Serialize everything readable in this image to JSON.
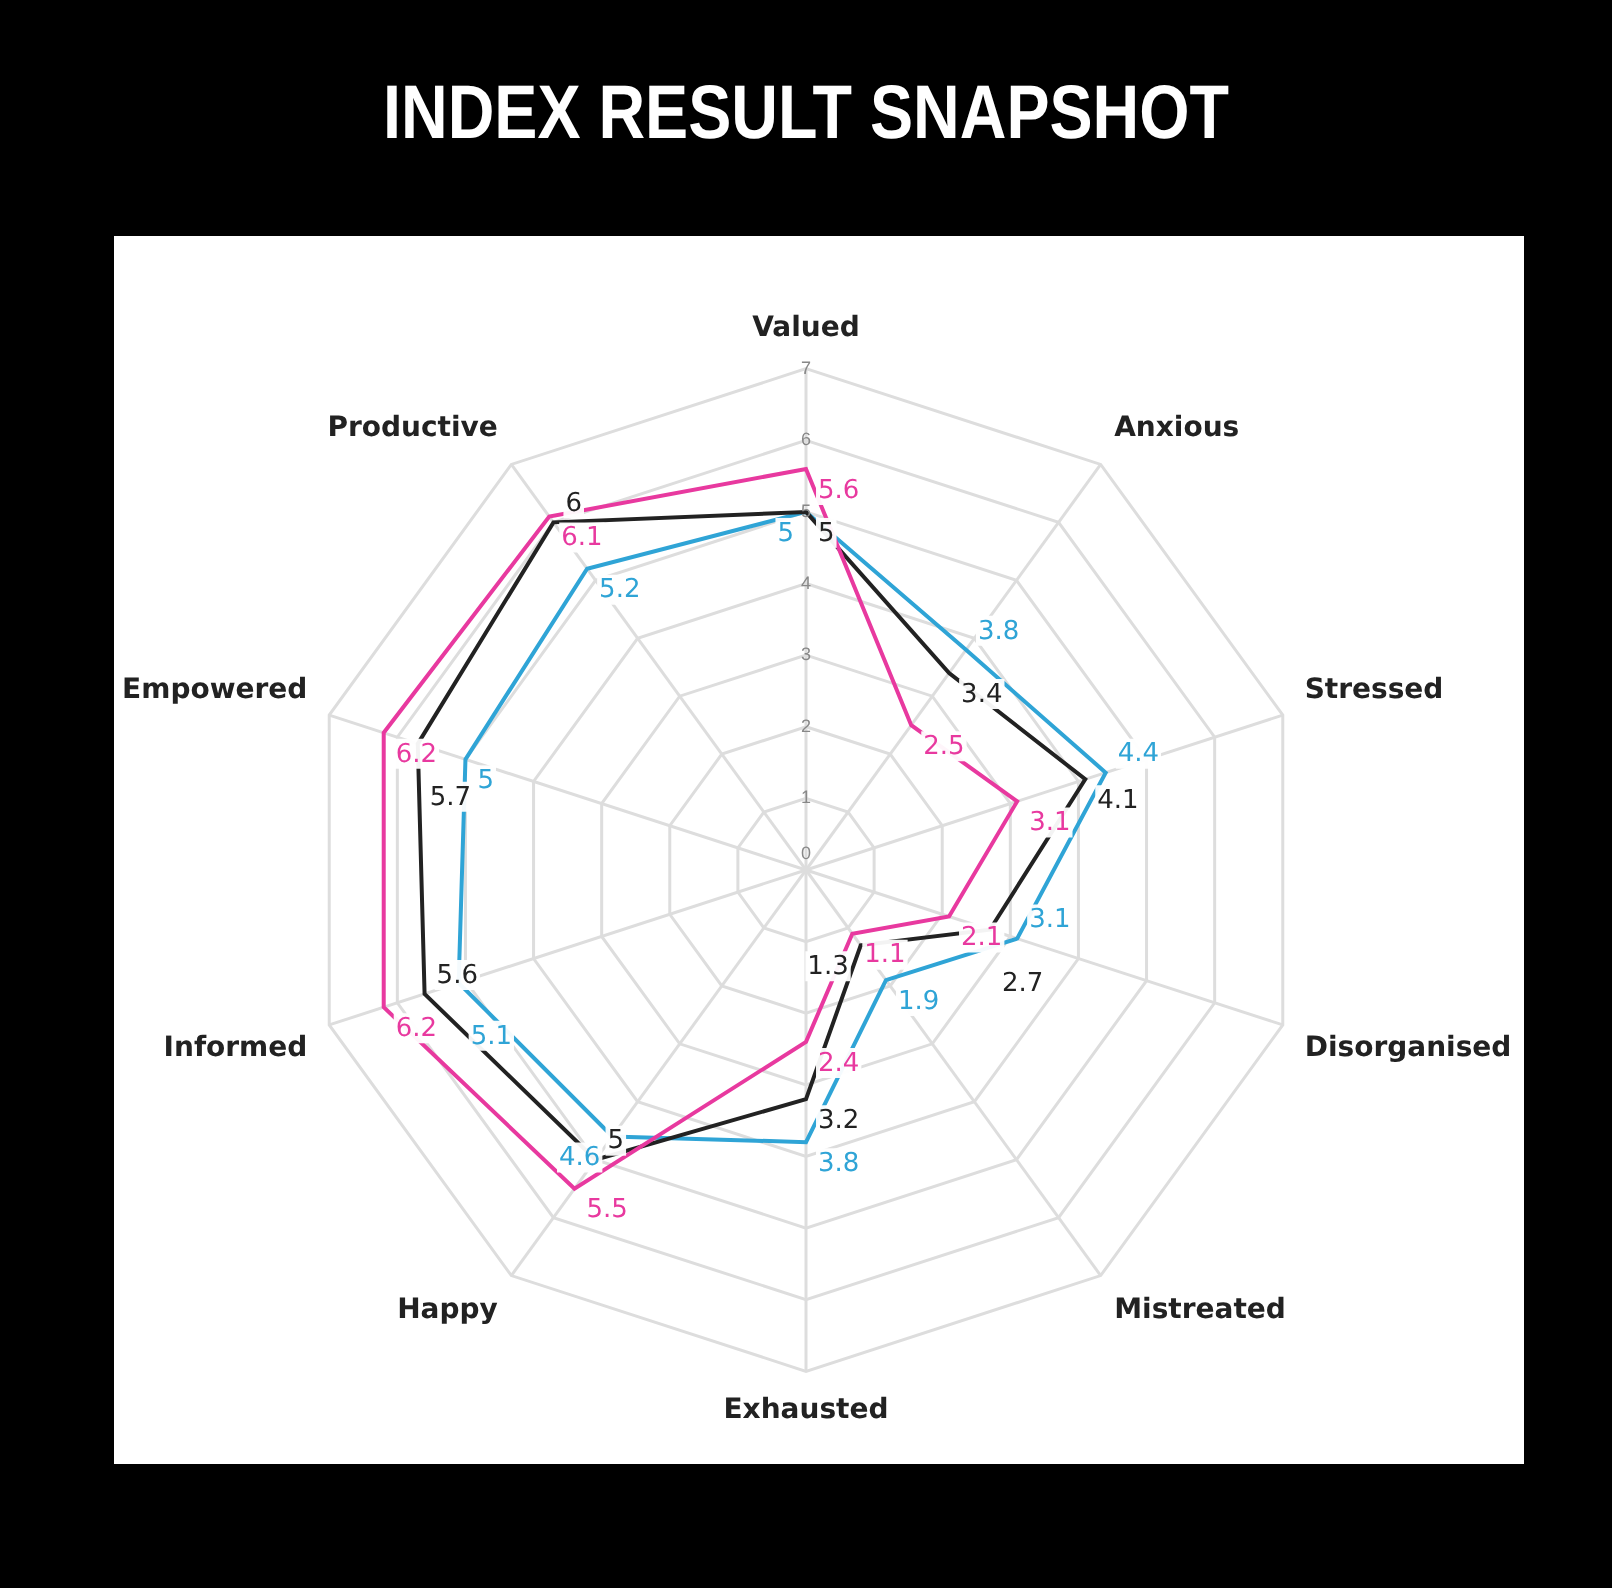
{
  "chart_data": {
    "type": "radar",
    "title": "INDEX RESULT SNAPSHOT",
    "categories": [
      "Valued",
      "Anxious",
      "Stressed",
      "Disorganised",
      "Mistreated",
      "Exhausted",
      "Happy",
      "Informed",
      "Empowered",
      "Productive"
    ],
    "series": [
      {
        "color": "#e8399f",
        "values": [
          5.6,
          2.5,
          3.1,
          2.1,
          1.1,
          2.4,
          5.5,
          6.2,
          6.2,
          6.1
        ]
      },
      {
        "color": "#222222",
        "values": [
          5,
          3.4,
          4.1,
          2.7,
          1.3,
          3.2,
          5,
          5.6,
          5.7,
          6
        ]
      },
      {
        "color": "#2fa4d6",
        "values": [
          5,
          3.8,
          4.4,
          3.1,
          1.9,
          3.8,
          4.6,
          5.1,
          5,
          5.2
        ]
      }
    ],
    "ylim": [
      0,
      7
    ],
    "yticks": [
      0,
      1,
      2,
      3,
      4,
      5,
      6,
      7
    ],
    "grid": true,
    "data_labels": true,
    "marker": "none",
    "legend": false
  }
}
